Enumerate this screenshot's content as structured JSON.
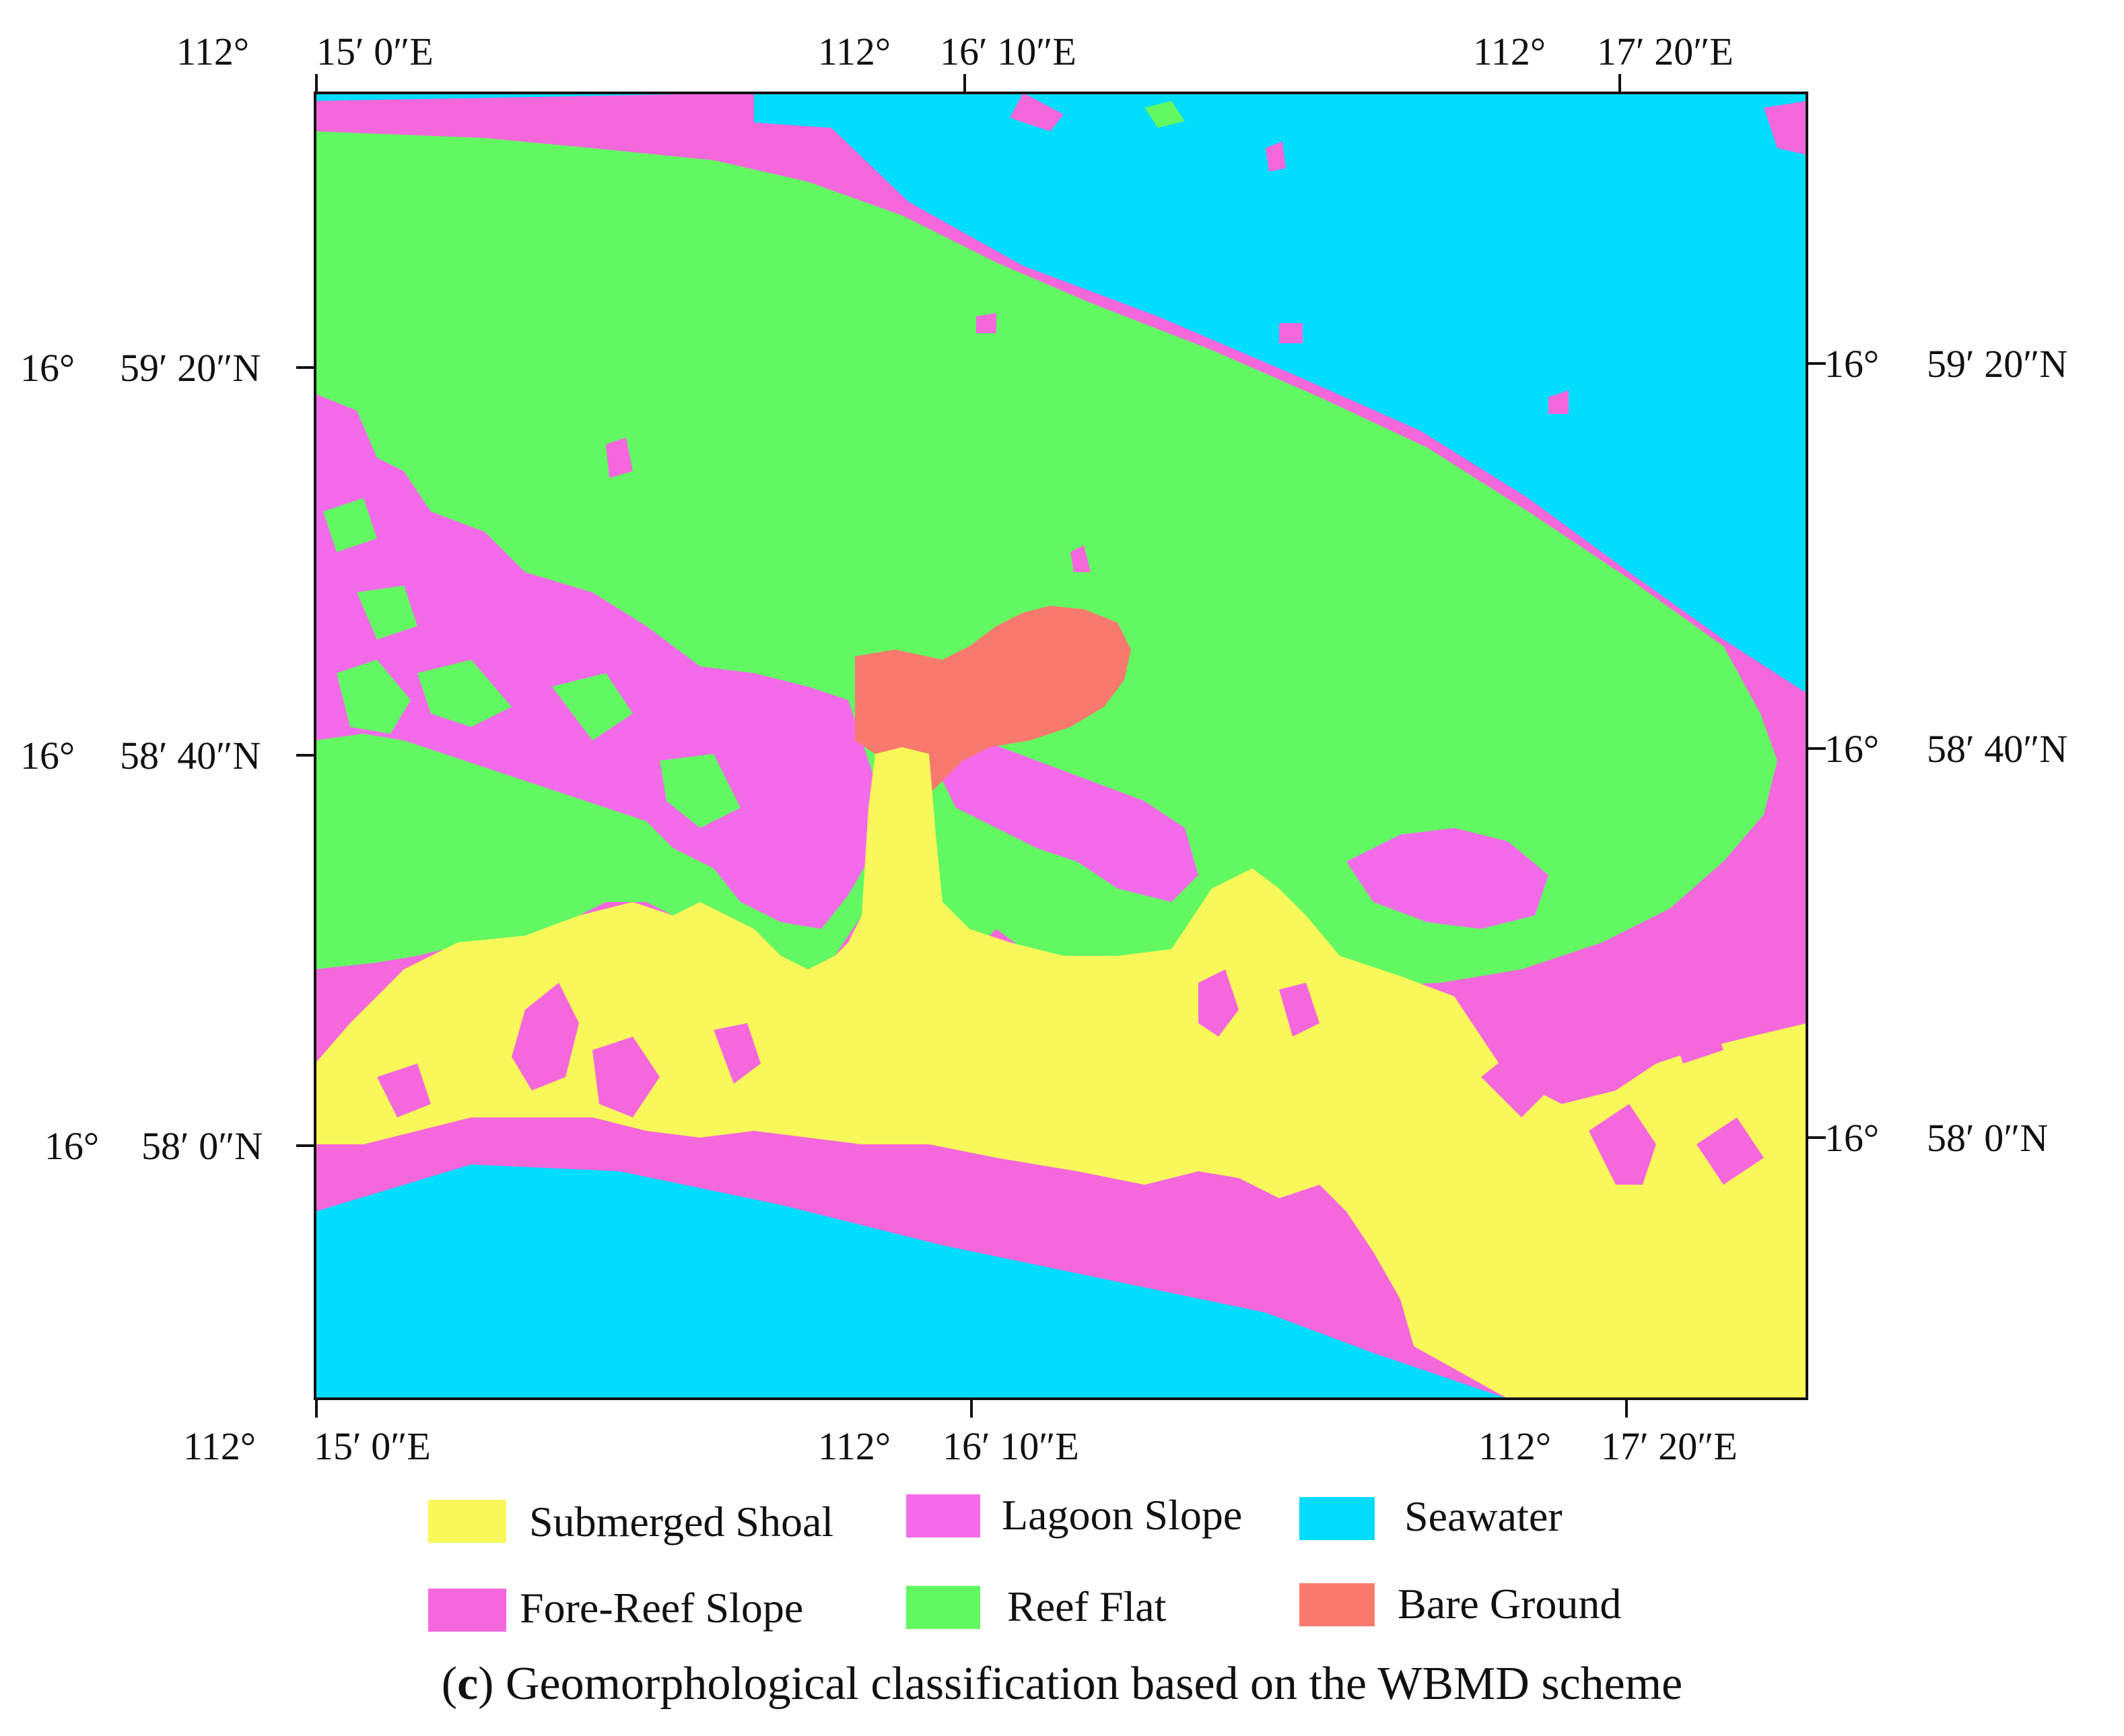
{
  "figure": {
    "caption_letter": "c",
    "caption_text": "Geomorphological classification based on the WBMD scheme"
  },
  "axes": {
    "top": [
      {
        "deg": "112°",
        "min": "15′ 0″E"
      },
      {
        "deg": "112°",
        "min": "16′ 10″E"
      },
      {
        "deg": "112°",
        "min": "17′ 20″E"
      }
    ],
    "bottom": [
      {
        "deg": "112°",
        "min": "15′ 0″E"
      },
      {
        "deg": "112°",
        "min": "16′ 10″E"
      },
      {
        "deg": "112°",
        "min": "17′ 20″E"
      }
    ],
    "left": [
      {
        "deg": "16°",
        "min": "59′ 20″N"
      },
      {
        "deg": "16°",
        "min": "58′ 40″N"
      },
      {
        "deg": "16°",
        "min": "58′ 0″N"
      }
    ],
    "right": [
      {
        "deg": "16°",
        "min": "59′ 20″N"
      },
      {
        "deg": "16°",
        "min": "58′ 40″N"
      },
      {
        "deg": "16°",
        "min": "58′ 0″N"
      }
    ]
  },
  "legend": [
    {
      "label": "Submerged Shoal",
      "color": "#f8f85a"
    },
    {
      "label": "Lagoon Slope",
      "color": "#f46bea"
    },
    {
      "label": "Seawater",
      "color": "#00dcfc"
    },
    {
      "label": "Fore-Reef Slope",
      "color": "#f468dc"
    },
    {
      "label": "Reef Flat",
      "color": "#62f862"
    },
    {
      "label": "Bare Ground",
      "color": "#f87a6e"
    }
  ],
  "colors": {
    "seawater": "#00dcfc",
    "fore_reef_slope": "#f468dc",
    "lagoon_slope": "#f46bea",
    "reef_flat": "#62f862",
    "submerged_shoal": "#f8f85a",
    "bare_ground": "#f87a6e"
  }
}
